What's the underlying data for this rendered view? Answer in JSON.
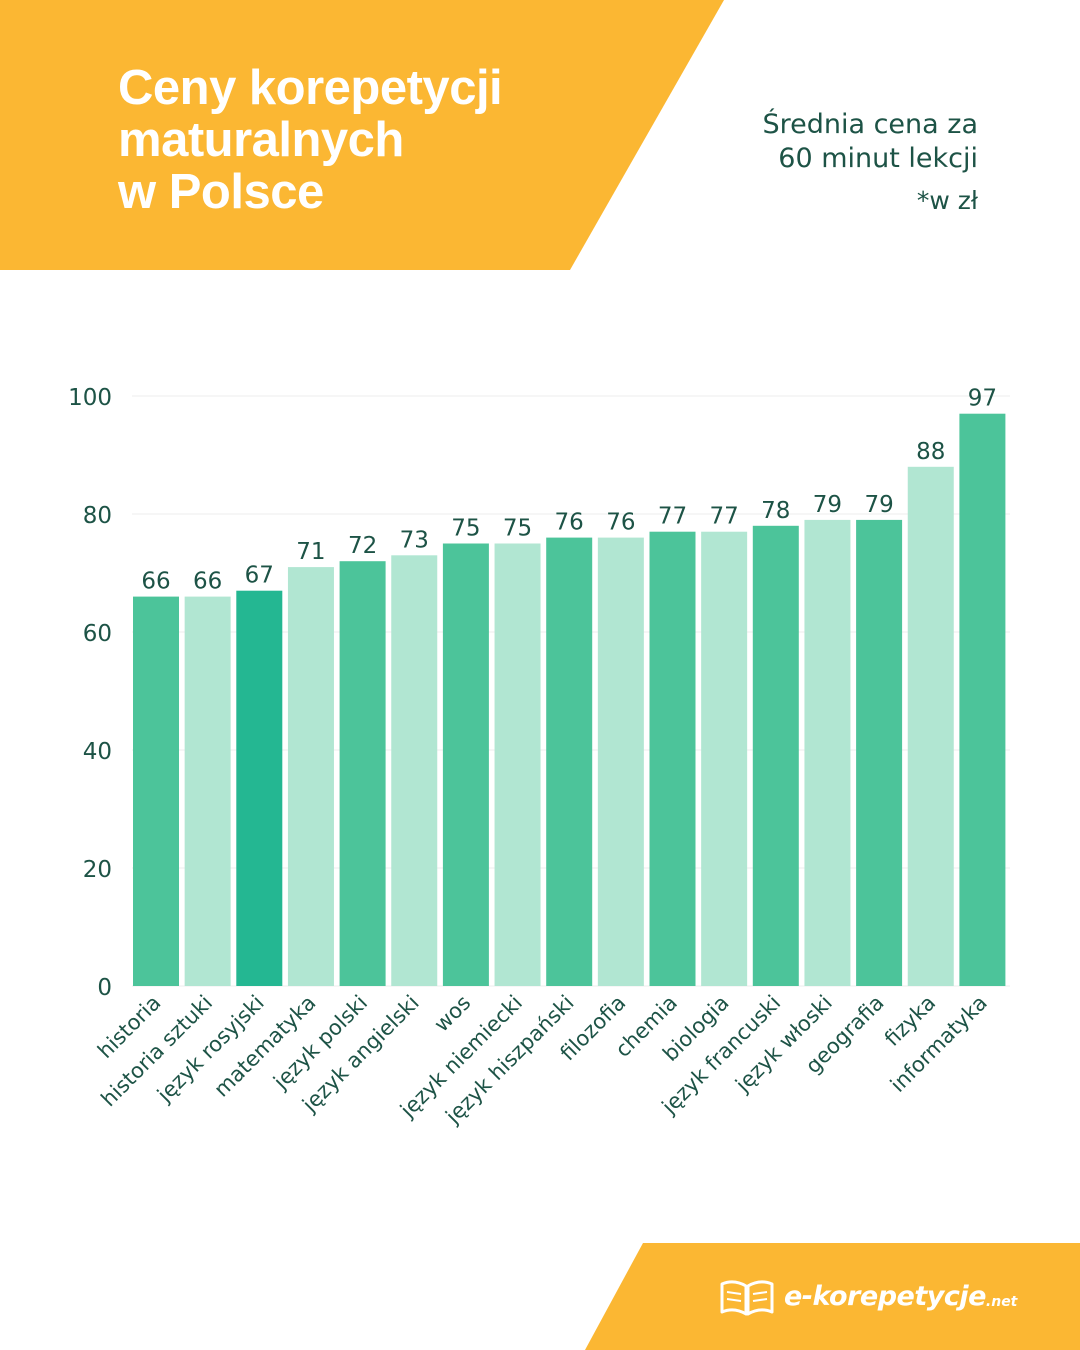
{
  "header": {
    "title_lines": [
      "Ceny korepetycji",
      "maturalnych",
      "w Polsce"
    ],
    "subtitle_lines": [
      "Średnia cena za",
      "60 minut lekcji"
    ],
    "unit_note": "*w zł"
  },
  "colors": {
    "banner": "#fbb733",
    "text_dark": "#1d5346",
    "bar_dark": "#4cc49a",
    "bar_light": "#b1e6d2",
    "bar_highlight": "#24b792",
    "grid": "#eeeeee"
  },
  "chart_data": {
    "type": "bar",
    "categories": [
      "historia",
      "historia sztuki",
      "język rosyjski",
      "matematyka",
      "język polski",
      "język angielski",
      "wos",
      "język niemiecki",
      "język hiszpański",
      "filozofia",
      "chemia",
      "biologia",
      "język francuski",
      "język włoski",
      "geografia",
      "fizyka",
      "informatyka"
    ],
    "values": [
      66,
      66,
      67,
      71,
      72,
      73,
      75,
      75,
      76,
      76,
      77,
      77,
      78,
      79,
      79,
      88,
      97
    ],
    "data_labels": [
      "66",
      "66",
      "67",
      "71",
      "72",
      "73",
      "75",
      "75",
      "76",
      "76",
      "77",
      "77",
      "78",
      "79",
      "79",
      "88",
      "97"
    ],
    "bar_shades": [
      "dark",
      "light",
      "highlight",
      "light",
      "dark",
      "light",
      "dark",
      "light",
      "dark",
      "light",
      "dark",
      "light",
      "dark",
      "light",
      "dark",
      "light",
      "dark"
    ],
    "yticks": [
      "0",
      "20",
      "40",
      "60",
      "80",
      "100"
    ],
    "ylim": [
      0,
      100
    ],
    "grid": true,
    "title": "Ceny korepetycji maturalnych w Polsce",
    "ylabel": "",
    "xlabel": ""
  },
  "footer": {
    "logo_text": "e-korepetycje",
    "logo_tld": ".net",
    "logo_icon": "open-book-icon"
  }
}
